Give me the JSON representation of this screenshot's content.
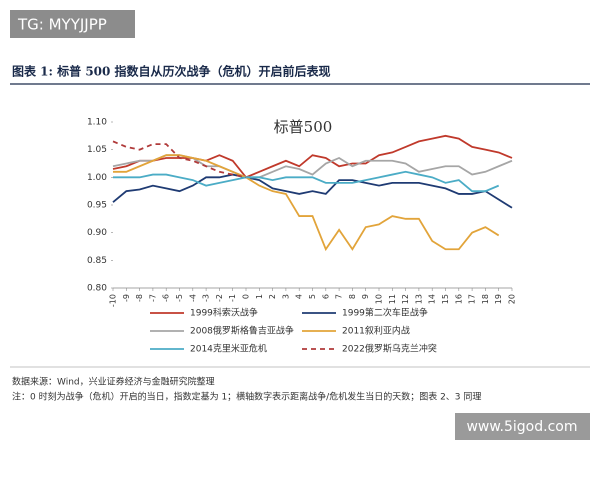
{
  "header": {
    "tag": "TG: MYYJJPP"
  },
  "figure_title": "图表 1:   标普 500 指数自从历次战争（危机）开启前后表现",
  "chart_data": {
    "type": "line",
    "title": "标普500",
    "x": [
      -10,
      -9,
      -8,
      -7,
      -6,
      -5,
      -4,
      -3,
      -2,
      -1,
      0,
      1,
      2,
      3,
      4,
      5,
      6,
      7,
      8,
      9,
      10,
      11,
      12,
      13,
      14,
      15,
      16,
      17,
      18,
      19,
      20
    ],
    "xlim": [
      -10,
      20
    ],
    "xticks": [
      -10,
      -9,
      -8,
      -7,
      -6,
      -5,
      -4,
      -3,
      -2,
      -1,
      0,
      1,
      2,
      3,
      4,
      5,
      6,
      7,
      8,
      9,
      10,
      11,
      12,
      13,
      14,
      15,
      16,
      17,
      18,
      19,
      20
    ],
    "ylim": [
      0.8,
      1.1
    ],
    "yticks": [
      {
        "value": 0.8,
        "label": "0.80"
      },
      {
        "value": 0.85,
        "label": "0.85"
      },
      {
        "value": 0.9,
        "label": "0.90"
      },
      {
        "value": 0.95,
        "label": "0.95"
      },
      {
        "value": 1.0,
        "label": "1.00"
      },
      {
        "value": 1.05,
        "label": "1.05"
      },
      {
        "value": 1.1,
        "label": "1.10"
      }
    ],
    "series": [
      {
        "name": "1999科索沃战争",
        "color": "#c0392b",
        "style": "solid",
        "values": [
          1.015,
          1.02,
          1.03,
          1.03,
          1.035,
          1.035,
          1.035,
          1.03,
          1.04,
          1.03,
          1.0,
          1.01,
          1.02,
          1.03,
          1.02,
          1.04,
          1.035,
          1.02,
          1.025,
          1.025,
          1.04,
          1.045,
          1.055,
          1.065,
          1.07,
          1.075,
          1.07,
          1.055,
          1.05,
          1.045,
          1.035
        ]
      },
      {
        "name": "1999第二次车臣战争",
        "color": "#1f3b73",
        "style": "solid",
        "values": [
          0.955,
          0.975,
          0.978,
          0.985,
          0.98,
          0.975,
          0.985,
          1.0,
          1.0,
          1.005,
          1.0,
          0.995,
          0.98,
          0.975,
          0.97,
          0.975,
          0.97,
          0.995,
          0.995,
          0.99,
          0.985,
          0.99,
          0.99,
          0.99,
          0.985,
          0.98,
          0.97,
          0.97,
          0.975,
          0.96,
          0.945
        ]
      },
      {
        "name": "2008俄罗斯格鲁吉亚战争",
        "color": "#a6a6a6",
        "style": "solid",
        "values": [
          1.02,
          1.025,
          1.03,
          1.03,
          1.04,
          1.04,
          1.035,
          1.02,
          1.02,
          1.01,
          1.0,
          1.0,
          1.01,
          1.02,
          1.015,
          1.005,
          1.025,
          1.035,
          1.02,
          1.03,
          1.03,
          1.03,
          1.025,
          1.01,
          1.015,
          1.02,
          1.02,
          1.005,
          1.01,
          1.02,
          1.03
        ]
      },
      {
        "name": "2011叙利亚内战",
        "color": "#e2a43a",
        "style": "solid",
        "values": [
          1.01,
          1.01,
          1.02,
          1.03,
          1.04,
          1.04,
          1.035,
          1.03,
          1.02,
          1.01,
          1.0,
          0.985,
          0.975,
          0.97,
          0.93,
          0.93,
          0.87,
          0.905,
          0.87,
          0.91,
          0.915,
          0.93,
          0.925,
          0.925,
          0.885,
          0.87,
          0.87,
          0.9,
          0.91,
          0.895,
          null
        ]
      },
      {
        "name": "2014克里米亚危机",
        "color": "#4bacc6",
        "style": "solid",
        "values": [
          1.0,
          1.0,
          1.0,
          1.005,
          1.005,
          1.0,
          0.995,
          0.985,
          0.99,
          0.995,
          1.0,
          1.0,
          0.995,
          1.0,
          1.0,
          1.0,
          0.99,
          0.99,
          0.99,
          0.995,
          1.0,
          1.005,
          1.01,
          1.005,
          1.0,
          0.99,
          0.995,
          0.975,
          0.975,
          0.985,
          null
        ]
      },
      {
        "name": "2022俄罗斯乌克兰冲突",
        "color": "#b03a3a",
        "style": "dashed",
        "values": [
          1.065,
          1.055,
          1.05,
          1.06,
          1.06,
          1.035,
          1.03,
          1.02,
          1.01,
          1.005,
          1.0,
          null,
          null,
          null,
          null,
          null,
          null,
          null,
          null,
          null,
          null,
          null,
          null,
          null,
          null,
          null,
          null,
          null,
          null,
          null,
          null
        ]
      }
    ]
  },
  "source": "数据来源：Wind，兴业证券经济与金融研究院整理",
  "note": "注：0 时刻为战争（危机）开启的当日，指数定基为 1；横轴数字表示距离战争/危机发生当日的天数；图表 2、3 同理",
  "site": "www.5igod.com"
}
